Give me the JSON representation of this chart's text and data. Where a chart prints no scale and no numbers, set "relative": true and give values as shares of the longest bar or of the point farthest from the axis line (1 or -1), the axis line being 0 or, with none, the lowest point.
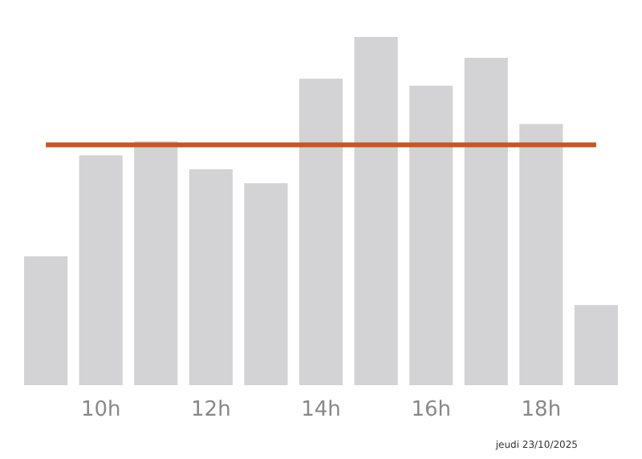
{
  "chart_data": {
    "type": "bar",
    "relative": true,
    "categories": [
      null,
      "10h",
      null,
      "12h",
      null,
      "14h",
      null,
      "16h",
      null,
      "18h",
      null
    ],
    "values": [
      0.37,
      0.66,
      0.7,
      0.62,
      0.58,
      0.88,
      1,
      0.86,
      0.94,
      0.75,
      0.23
    ],
    "color": "#d3d3d5",
    "ref_lines": [
      {
        "axis": "y",
        "value": 0.69,
        "color": "#c8561e"
      }
    ],
    "annotations": [
      "jeudi 23/10/2025"
    ]
  }
}
